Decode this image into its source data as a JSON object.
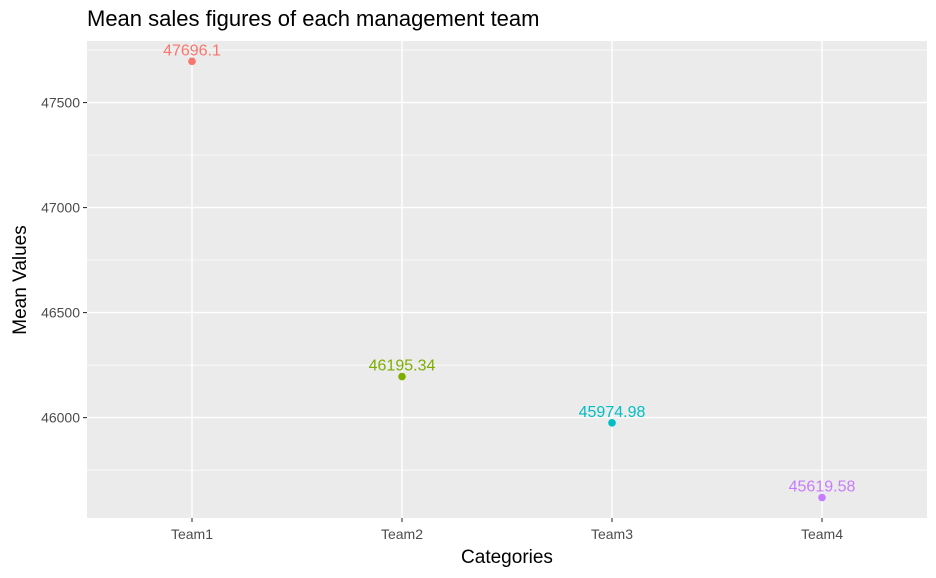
{
  "chart_data": {
    "type": "scatter",
    "title": "Mean sales figures of each management team",
    "xlabel": "Categories",
    "ylabel": "Mean Values",
    "categories": [
      "Team1",
      "Team2",
      "Team3",
      "Team4"
    ],
    "values": [
      47696.1,
      46195.34,
      45974.98,
      45619.58
    ],
    "data_labels": [
      "47696.1",
      "46195.34",
      "45974.98",
      "45619.58"
    ],
    "colors": [
      "#F8766D",
      "#7CAE00",
      "#00BFC4",
      "#C77CFF"
    ],
    "yticks": [
      46000,
      46500,
      47000,
      47500
    ],
    "ytick_labels": [
      "46000",
      "46500",
      "47000",
      "47500"
    ],
    "ylim": [
      45522,
      47793
    ],
    "grid": true,
    "legend": "none"
  }
}
